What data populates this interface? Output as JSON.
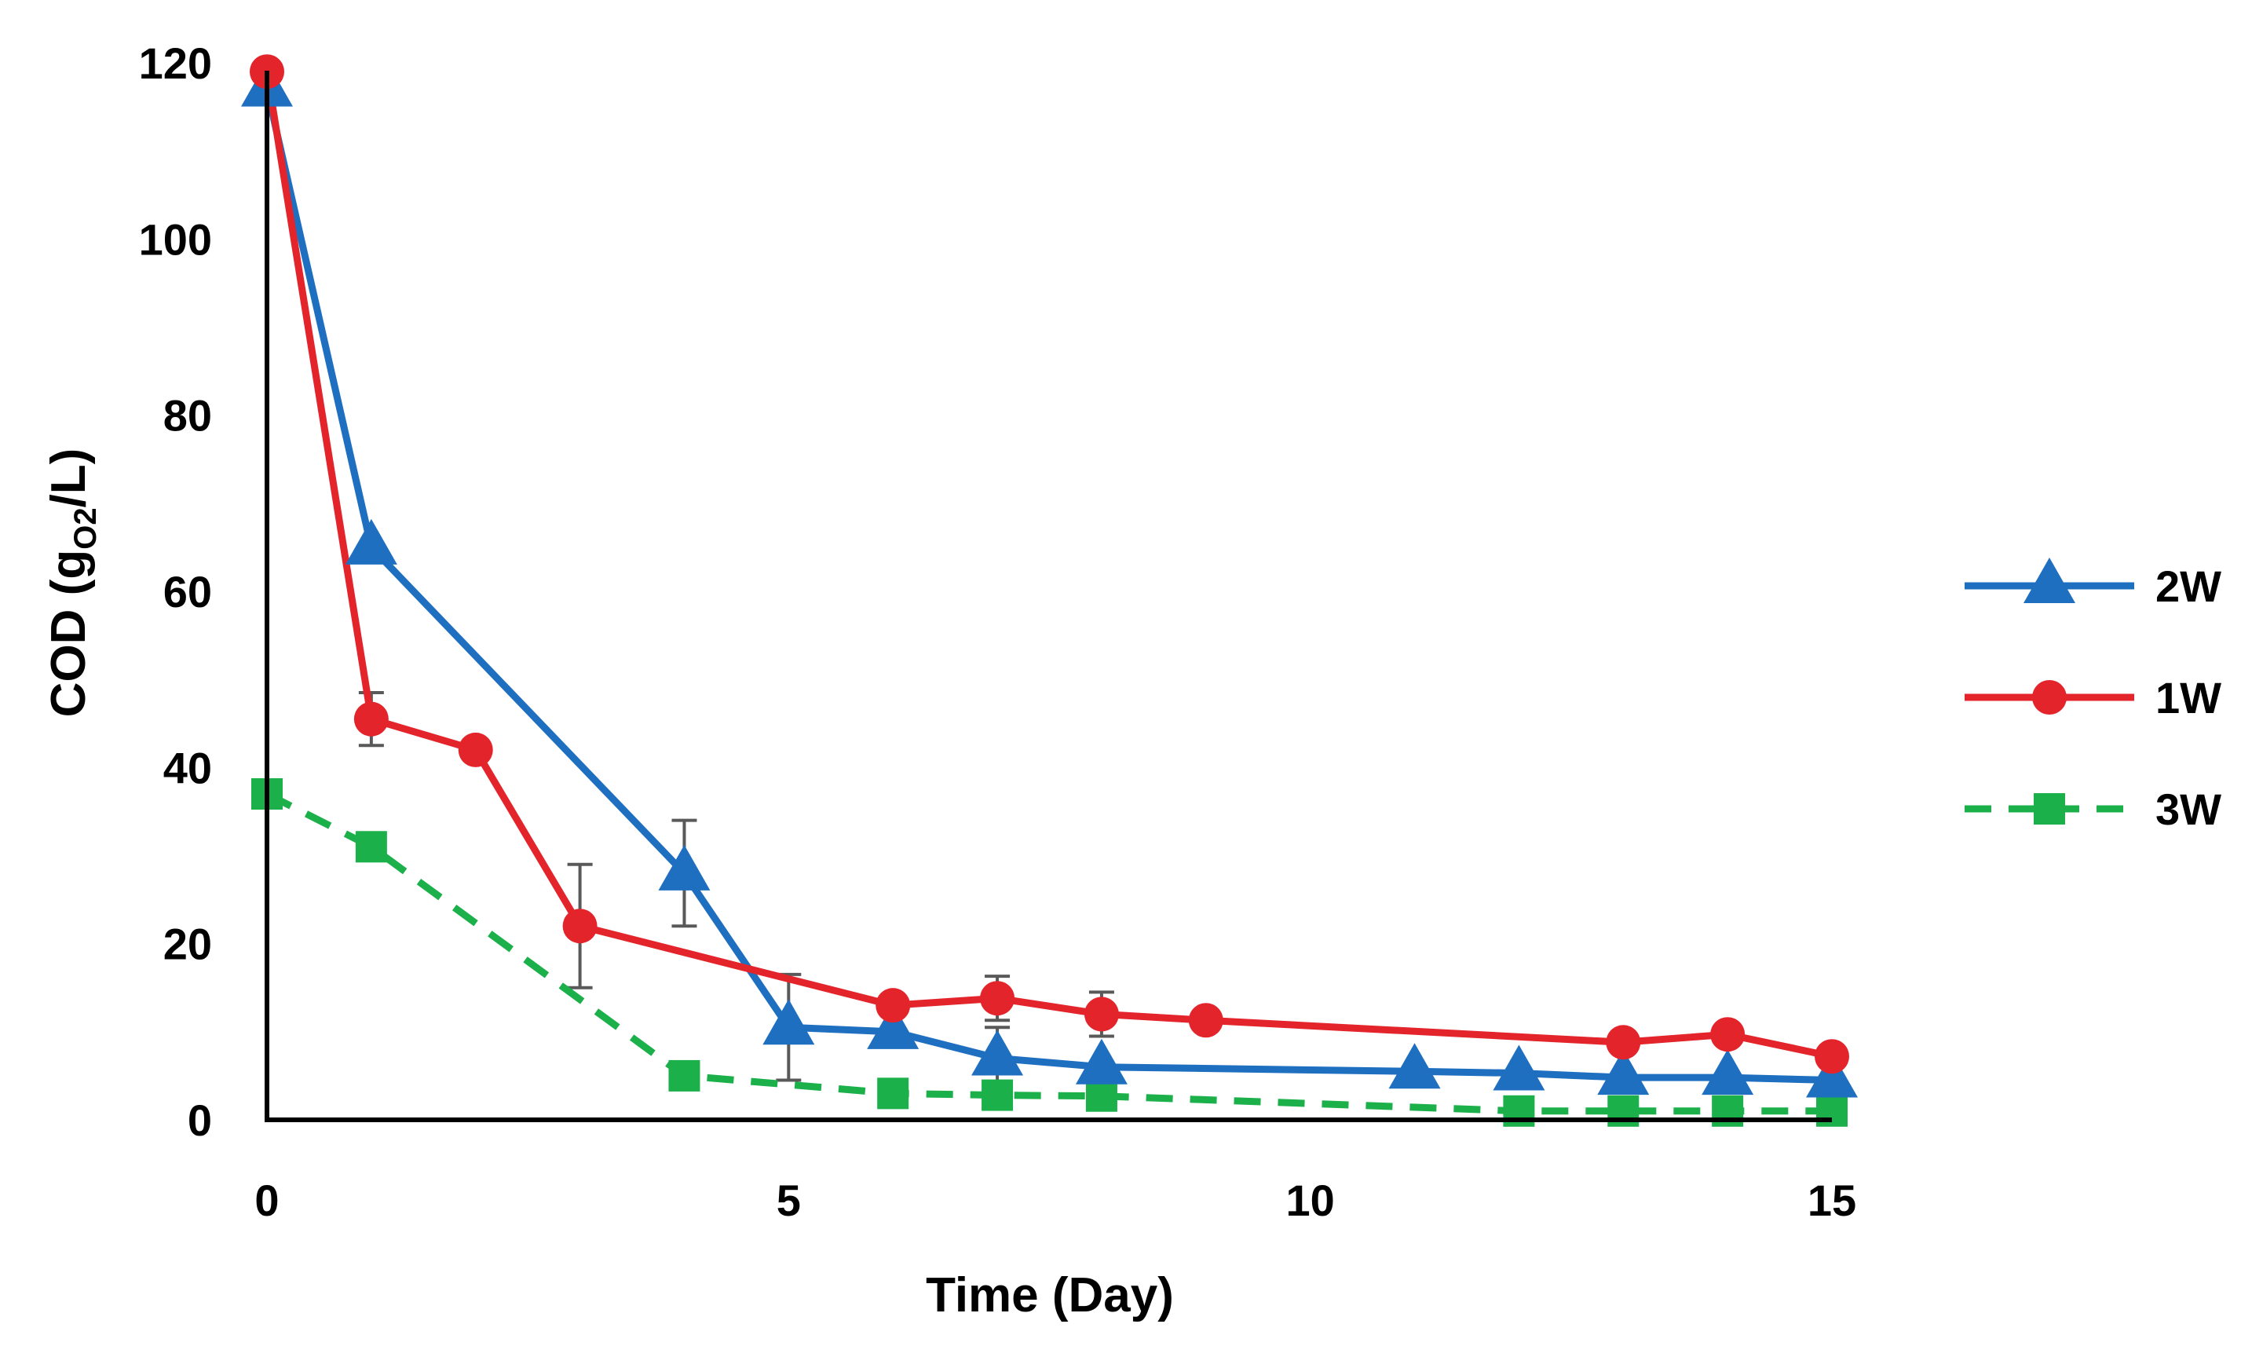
{
  "chart_data": {
    "type": "line",
    "title": "",
    "xlabel": "Time (Day)",
    "ylabel": {
      "prefix": "COD (g",
      "subscript": "O2",
      "suffix": "/L)"
    },
    "xlim": [
      0,
      15
    ],
    "ylim": [
      0,
      120
    ],
    "xticks": [
      0,
      5,
      10,
      15
    ],
    "yticks": [
      0,
      20,
      40,
      60,
      80,
      100,
      120
    ],
    "grid": false,
    "legend_position": "right",
    "series": [
      {
        "name": "2W",
        "color": "#1f6fc1",
        "marker": "triangle",
        "line_style": "solid",
        "points": [
          {
            "x": 0,
            "y": 117
          },
          {
            "x": 1,
            "y": 65
          },
          {
            "x": 4,
            "y": 28,
            "err": 6
          },
          {
            "x": 5,
            "y": 10.5,
            "err": 6
          },
          {
            "x": 6,
            "y": 10
          },
          {
            "x": 7,
            "y": 7,
            "err": 3.5
          },
          {
            "x": 8,
            "y": 6
          },
          {
            "x": 11,
            "y": 5.5
          },
          {
            "x": 12,
            "y": 5.3
          },
          {
            "x": 13,
            "y": 4.8
          },
          {
            "x": 14,
            "y": 4.8
          },
          {
            "x": 15,
            "y": 4.5
          }
        ]
      },
      {
        "name": "1W",
        "color": "#e3242b",
        "marker": "circle",
        "line_style": "solid",
        "points": [
          {
            "x": 0,
            "y": 119
          },
          {
            "x": 1,
            "y": 45.5,
            "err": 3
          },
          {
            "x": 2,
            "y": 42
          },
          {
            "x": 3,
            "y": 22,
            "err": 7
          },
          {
            "x": 6,
            "y": 13
          },
          {
            "x": 7,
            "y": 13.8,
            "err": 2.5
          },
          {
            "x": 8,
            "y": 12,
            "err": 2.5
          },
          {
            "x": 9,
            "y": 11.3
          },
          {
            "x": 13,
            "y": 8.8
          },
          {
            "x": 14,
            "y": 9.7
          },
          {
            "x": 15,
            "y": 7.2
          }
        ]
      },
      {
        "name": "3W",
        "color": "#1cb04b",
        "marker": "square",
        "line_style": "dashed",
        "points": [
          {
            "x": 0,
            "y": 37
          },
          {
            "x": 1,
            "y": 31
          },
          {
            "x": 4,
            "y": 5
          },
          {
            "x": 6,
            "y": 3
          },
          {
            "x": 7,
            "y": 2.8
          },
          {
            "x": 8,
            "y": 2.7
          },
          {
            "x": 12,
            "y": 1
          },
          {
            "x": 13,
            "y": 1
          },
          {
            "x": 14,
            "y": 1
          },
          {
            "x": 15,
            "y": 1
          }
        ]
      }
    ]
  }
}
